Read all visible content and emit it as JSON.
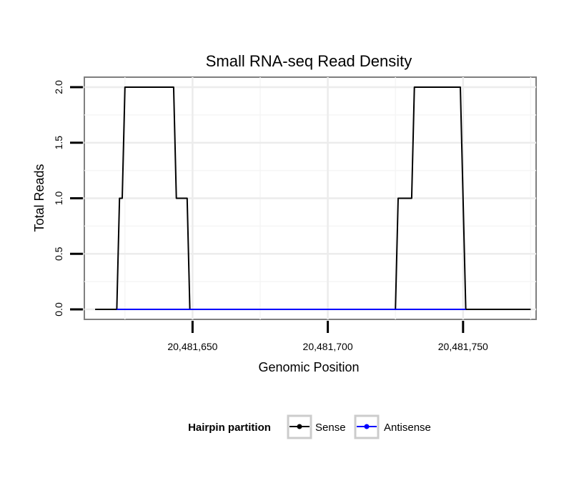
{
  "chart_data": {
    "type": "line",
    "title": "Small RNA-seq Read Density",
    "xlabel": "Genomic Position",
    "ylabel": "Total Reads",
    "xlim": [
      20481610,
      20481777
    ],
    "ylim": [
      -0.09,
      2.09
    ],
    "x_ticks": [
      20481650,
      20481700,
      20481750
    ],
    "x_tick_labels": [
      "20,481,650",
      "20,481,700",
      "20,481,750"
    ],
    "y_ticks": [
      0,
      0.5,
      1,
      1.5,
      2
    ],
    "y_tick_labels": [
      "0.0",
      "0.5",
      "1.0",
      "1.5",
      "2.0"
    ],
    "grid": true,
    "legend": {
      "title": "Hairpin partition",
      "position": "bottom",
      "entries": [
        "Sense",
        "Antisense"
      ]
    },
    "series": [
      {
        "name": "Sense",
        "color": "#000000",
        "x": [
          20481614,
          20481622,
          20481623,
          20481624,
          20481625,
          20481643,
          20481644,
          20481648,
          20481649,
          20481725,
          20481726,
          20481731,
          20481732,
          20481749,
          20481751,
          20481775
        ],
        "y": [
          0,
          0,
          1,
          1,
          2,
          2,
          1,
          1,
          0,
          0,
          1,
          1,
          2,
          2,
          0,
          0
        ]
      },
      {
        "name": "Antisense",
        "color": "#0000ff",
        "x": [
          20481622,
          20481649,
          20481725,
          20481751
        ],
        "y": [
          0,
          0,
          0,
          0
        ]
      }
    ]
  }
}
